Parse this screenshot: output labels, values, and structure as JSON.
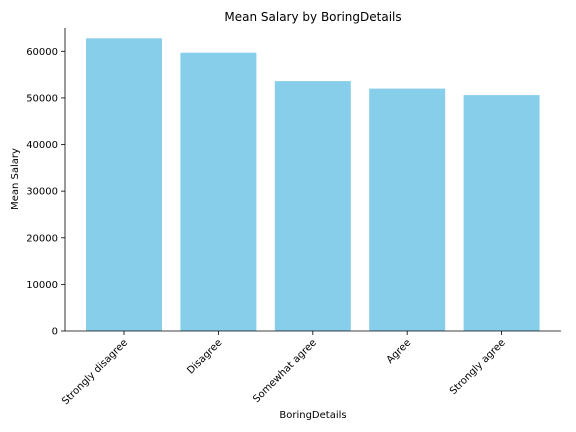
{
  "chart_data": {
    "type": "bar",
    "title": "Mean Salary by BoringDetails",
    "xlabel": "BoringDetails",
    "ylabel": "Mean Salary",
    "categories": [
      "Strongly disagree",
      "Disagree",
      "Somewhat agree",
      "Agree",
      "Strongly agree"
    ],
    "values": [
      62800,
      59700,
      53600,
      52000,
      50600
    ],
    "ylim": [
      0,
      65000
    ],
    "yticks": [
      0,
      10000,
      20000,
      30000,
      40000,
      50000,
      60000
    ],
    "ytick_labels": [
      "0",
      "10000",
      "20000",
      "30000",
      "40000",
      "50000",
      "60000"
    ],
    "bar_color": "#87ceeb",
    "grid": false,
    "legend": "none"
  }
}
